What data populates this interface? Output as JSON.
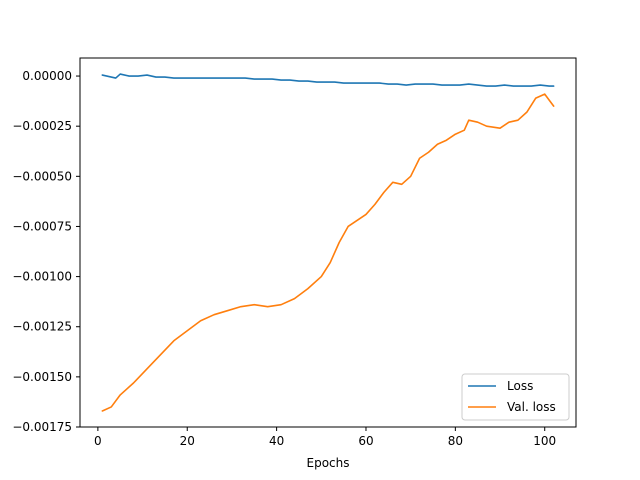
{
  "chart_data": {
    "type": "line",
    "title": "",
    "xlabel": "Epochs",
    "ylabel": "",
    "xlim": [
      -4,
      107
    ],
    "ylim": [
      -0.00175,
      9e-05
    ],
    "x_ticks": [
      0,
      20,
      40,
      60,
      80,
      100
    ],
    "x_tick_labels": [
      "0",
      "20",
      "40",
      "60",
      "80",
      "100"
    ],
    "y_ticks": [
      0,
      -0.00025,
      -0.0005,
      -0.00075,
      -0.001,
      -0.00125,
      -0.0015,
      -0.00175
    ],
    "y_tick_labels": [
      "0.00000",
      "−0.00025",
      "−0.00050",
      "−0.00075",
      "−0.00100",
      "−0.00125",
      "−0.00150",
      "−0.00175"
    ],
    "grid": false,
    "legend_position": "lower-right",
    "series": [
      {
        "name": "Loss",
        "color": "#1f77b4",
        "x": [
          1,
          3,
          4,
          5,
          7,
          9,
          11,
          13,
          15,
          17,
          19,
          21,
          23,
          25,
          27,
          29,
          31,
          33,
          35,
          37,
          39,
          41,
          43,
          45,
          47,
          49,
          51,
          53,
          55,
          57,
          59,
          61,
          63,
          65,
          67,
          69,
          71,
          73,
          75,
          77,
          79,
          81,
          83,
          85,
          87,
          89,
          91,
          93,
          95,
          97,
          99,
          101,
          102
        ],
        "y": [
          5e-06,
          -5e-06,
          -1e-05,
          1e-05,
          0.0,
          0.0,
          5e-06,
          -5e-06,
          -5e-06,
          -1e-05,
          -1e-05,
          -1e-05,
          -1e-05,
          -1e-05,
          -1e-05,
          -1e-05,
          -1e-05,
          -1e-05,
          -1.5e-05,
          -1.5e-05,
          -1.5e-05,
          -2e-05,
          -2e-05,
          -2.5e-05,
          -2.5e-05,
          -3e-05,
          -3e-05,
          -3e-05,
          -3.5e-05,
          -3.5e-05,
          -3.5e-05,
          -3.5e-05,
          -3.5e-05,
          -4e-05,
          -4e-05,
          -4.5e-05,
          -4e-05,
          -4e-05,
          -4e-05,
          -4.5e-05,
          -4.5e-05,
          -4.5e-05,
          -4e-05,
          -4.5e-05,
          -5e-05,
          -5e-05,
          -4.5e-05,
          -5e-05,
          -5e-05,
          -5e-05,
          -4.5e-05,
          -5e-05,
          -5e-05
        ]
      },
      {
        "name": "Val. loss",
        "color": "#ff7f0e",
        "x": [
          1,
          3,
          5,
          8,
          11,
          14,
          17,
          20,
          23,
          26,
          29,
          32,
          35,
          38,
          41,
          44,
          47,
          50,
          52,
          54,
          56,
          58,
          60,
          62,
          64,
          66,
          68,
          70,
          72,
          74,
          76,
          78,
          80,
          82,
          83,
          85,
          87,
          90,
          92,
          94,
          96,
          98,
          100,
          102
        ],
        "y": [
          -0.00167,
          -0.00165,
          -0.00159,
          -0.00153,
          -0.00146,
          -0.00139,
          -0.00132,
          -0.00127,
          -0.00122,
          -0.00119,
          -0.00117,
          -0.00115,
          -0.00114,
          -0.00115,
          -0.00114,
          -0.00111,
          -0.00106,
          -0.001,
          -0.00093,
          -0.00083,
          -0.00075,
          -0.00072,
          -0.00069,
          -0.00064,
          -0.00058,
          -0.00053,
          -0.00054,
          -0.0005,
          -0.00041,
          -0.00038,
          -0.00034,
          -0.00032,
          -0.00029,
          -0.00027,
          -0.00022,
          -0.00023,
          -0.00025,
          -0.00026,
          -0.00023,
          -0.00022,
          -0.00018,
          -0.00011,
          -9e-05,
          -0.00015
        ]
      }
    ]
  }
}
